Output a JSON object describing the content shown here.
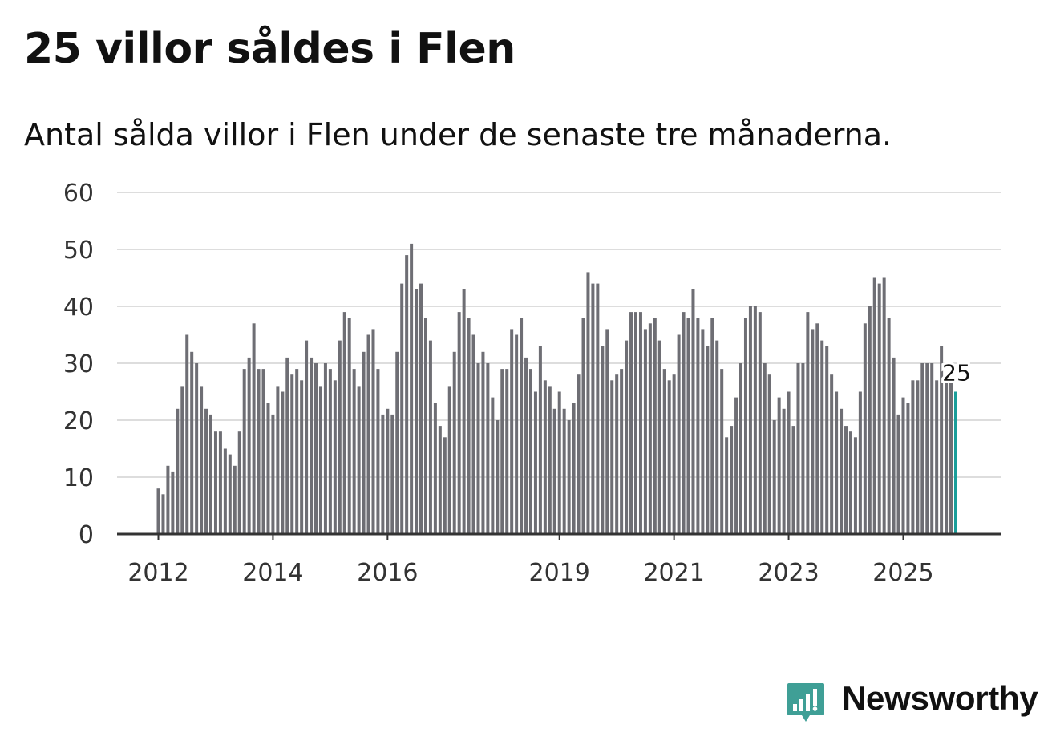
{
  "chart_data": {
    "type": "bar",
    "title": "25 villor såldes i Flen",
    "subtitle": "Antal sålda villor i Flen under de senaste tre månaderna.",
    "xlabel": "",
    "ylabel": "",
    "ylim": [
      0,
      60
    ],
    "yticks": [
      "0",
      "10",
      "20",
      "30",
      "40",
      "50",
      "60"
    ],
    "xticks": [
      {
        "label": "2012",
        "year": 2012
      },
      {
        "label": "2014",
        "year": 2014
      },
      {
        "label": "2016",
        "year": 2016
      },
      {
        "label": "2019",
        "year": 2019
      },
      {
        "label": "2021",
        "year": 2021
      },
      {
        "label": "2023",
        "year": 2023
      },
      {
        "label": "2025",
        "year": 2025
      }
    ],
    "grid": true,
    "start": "2012-01",
    "values": [
      8,
      7,
      12,
      11,
      22,
      26,
      35,
      32,
      30,
      26,
      22,
      21,
      18,
      18,
      15,
      14,
      12,
      18,
      29,
      31,
      37,
      29,
      29,
      23,
      21,
      26,
      25,
      31,
      28,
      29,
      27,
      34,
      31,
      30,
      26,
      30,
      29,
      27,
      34,
      39,
      38,
      29,
      26,
      32,
      35,
      36,
      29,
      21,
      22,
      21,
      32,
      44,
      49,
      51,
      43,
      44,
      38,
      34,
      23,
      19,
      17,
      26,
      32,
      39,
      43,
      38,
      35,
      30,
      32,
      30,
      24,
      20,
      29,
      29,
      36,
      35,
      38,
      31,
      29,
      25,
      33,
      27,
      26,
      22,
      25,
      22,
      20,
      23,
      28,
      38,
      46,
      44,
      44,
      33,
      36,
      27,
      28,
      29,
      34,
      39,
      39,
      39,
      36,
      37,
      38,
      34,
      29,
      27,
      28,
      35,
      39,
      38,
      43,
      38,
      36,
      33,
      38,
      34,
      29,
      17,
      19,
      24,
      30,
      38,
      40,
      40,
      39,
      30,
      28,
      20,
      24,
      22,
      25,
      19,
      30,
      30,
      39,
      36,
      37,
      34,
      33,
      28,
      25,
      22,
      19,
      18,
      17,
      25,
      37,
      40,
      45,
      44,
      45,
      38,
      31,
      21,
      24,
      23,
      27,
      27,
      30,
      30,
      30,
      27,
      33,
      27,
      27,
      25
    ],
    "highlight": {
      "index": 167,
      "value": 25,
      "label": "25",
      "color": "#1a9e9a"
    },
    "bar_color": "#6e6e74"
  },
  "brand": {
    "name": "Newsworthy",
    "color": "#3f9f96"
  }
}
